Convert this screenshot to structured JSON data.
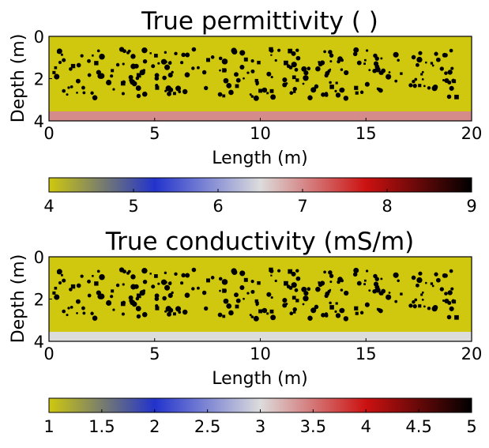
{
  "chart_data": [
    {
      "type": "heatmap",
      "title": "True permittivity ( )",
      "xlabel": "Length (m)",
      "ylabel": "Depth (m)",
      "xlim": [
        0,
        20
      ],
      "ylim": [
        4,
        0
      ],
      "x_ticks": [
        "0",
        "5",
        "10",
        "15",
        "20"
      ],
      "y_ticks": [
        "0",
        "2",
        "4"
      ],
      "background_value": 4,
      "bottom_layer": {
        "depth_from": 3.55,
        "depth_to": 4.0,
        "value": 7
      },
      "inclusions": {
        "value": 9,
        "depth_range": [
          0.6,
          2.95
        ],
        "length_range": [
          0.2,
          19.5
        ]
      },
      "colorbar": {
        "min": 4,
        "max": 9,
        "ticks": [
          "4",
          "5",
          "6",
          "7",
          "8",
          "9"
        ],
        "colors": [
          "#cfc80e",
          "#2233cc",
          "#dcdcdc",
          "#cc1111",
          "#000000"
        ]
      }
    },
    {
      "type": "heatmap",
      "title": "True conductivity (mS/m)",
      "xlabel": "Length (m)",
      "ylabel": "Depth (m)",
      "xlim": [
        0,
        20
      ],
      "ylim": [
        4,
        0
      ],
      "x_ticks": [
        "0",
        "5",
        "10",
        "15",
        "20"
      ],
      "y_ticks": [
        "0",
        "2",
        "4"
      ],
      "background_value": 1,
      "bottom_layer": {
        "depth_from": 3.55,
        "depth_to": 4.0,
        "value": 3
      },
      "inclusions": {
        "value": 5,
        "depth_range": [
          0.6,
          2.95
        ],
        "length_range": [
          0.2,
          19.5
        ]
      },
      "colorbar": {
        "min": 1,
        "max": 5,
        "ticks": [
          "1",
          "1.5",
          "2",
          "2.5",
          "3",
          "3.5",
          "4",
          "4.5",
          "5"
        ],
        "colors": [
          "#cfc80e",
          "#2233cc",
          "#dcdcdc",
          "#cc1111",
          "#000000"
        ]
      }
    }
  ]
}
